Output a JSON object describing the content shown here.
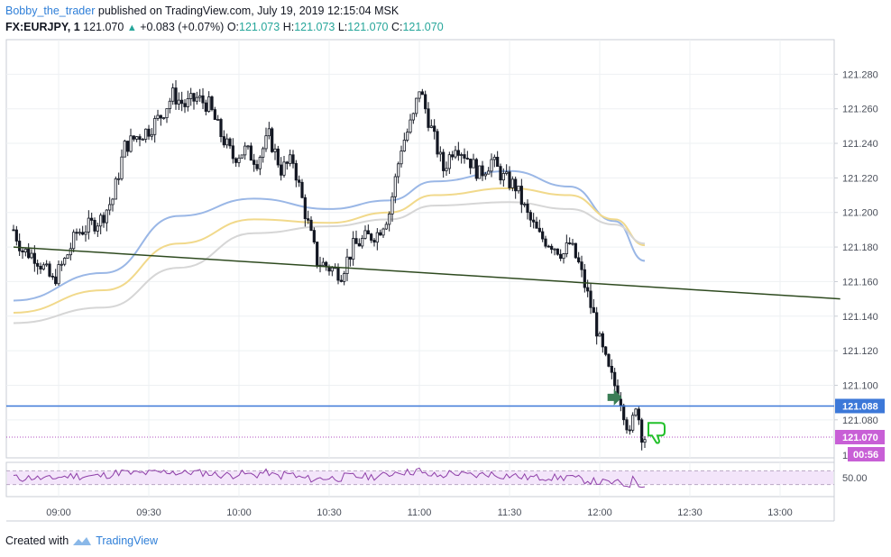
{
  "header": {
    "author": "Bobby_the_trader",
    "published_text": "published on TradingView.com, July 19, 2019 12:15:04 MSK",
    "symbol": "FX:EURJPY, 1",
    "last": "121.070",
    "change": "+0.083 (+0.07%)",
    "o_label": "O:",
    "o_val": "121.073",
    "h_label": "H:",
    "h_val": "121.073",
    "l_label": "L:",
    "l_val": "121.070",
    "c_label": "C:",
    "c_val": "121.070"
  },
  "footer": {
    "created_with": "Created with",
    "brand": "TradingView"
  },
  "colors": {
    "candle": "#131722",
    "ma_blue": "#9ab7e6",
    "ma_yellow": "#f1d98b",
    "ma_grey": "#d6d6d6",
    "trendline": "#2e4a1f",
    "hline": "#3c78d8",
    "last_line": "#b04fc0",
    "rsi_line": "#8e3ea8",
    "rsi_band": "#f3e5fa",
    "arrow": "#3a7d55",
    "thumb": "#22c02a"
  },
  "chart_data": {
    "type": "candlestick",
    "y_ticks": [
      "121.280",
      "121.260",
      "121.240",
      "121.220",
      "121.200",
      "121.180",
      "121.160",
      "121.140",
      "121.120",
      "121.100",
      "121.080"
    ],
    "y_range": [
      121.058,
      121.3
    ],
    "x_ticks": [
      "09:00",
      "09:30",
      "10:00",
      "10:30",
      "11:00",
      "11:30",
      "12:00",
      "12:30",
      "13:00"
    ],
    "levels": {
      "horizontal_line": {
        "value": 121.088,
        "label": "121.088"
      },
      "last_price": {
        "value": 121.07,
        "label": "121.070"
      },
      "countdown": "00:56",
      "partial_tick": "1"
    },
    "trendline": {
      "from": [
        "08:45",
        121.18
      ],
      "to": [
        "13:20",
        121.15
      ]
    },
    "close_path": [
      [
        "08:45",
        121.19
      ],
      [
        "08:48",
        121.178
      ],
      [
        "08:52",
        121.175
      ],
      [
        "08:55",
        121.168
      ],
      [
        "08:58",
        121.16
      ],
      [
        "09:02",
        121.172
      ],
      [
        "09:06",
        121.188
      ],
      [
        "09:10",
        121.192
      ],
      [
        "09:14",
        121.196
      ],
      [
        "09:18",
        121.208
      ],
      [
        "09:22",
        121.238
      ],
      [
        "09:26",
        121.244
      ],
      [
        "09:30",
        121.248
      ],
      [
        "09:34",
        121.256
      ],
      [
        "09:38",
        121.268
      ],
      [
        "09:42",
        121.262
      ],
      [
        "09:46",
        121.266
      ],
      [
        "09:50",
        121.262
      ],
      [
        "09:54",
        121.245
      ],
      [
        "09:58",
        121.232
      ],
      [
        "10:02",
        121.236
      ],
      [
        "10:06",
        121.23
      ],
      [
        "10:10",
        121.244
      ],
      [
        "10:14",
        121.225
      ],
      [
        "10:18",
        121.23
      ],
      [
        "10:22",
        121.2
      ],
      [
        "10:26",
        121.172
      ],
      [
        "10:30",
        121.168
      ],
      [
        "10:34",
        121.165
      ],
      [
        "10:38",
        121.18
      ],
      [
        "10:42",
        121.185
      ],
      [
        "10:46",
        121.188
      ],
      [
        "10:50",
        121.2
      ],
      [
        "10:54",
        121.238
      ],
      [
        "10:58",
        121.255
      ],
      [
        "11:00",
        121.272
      ],
      [
        "11:04",
        121.248
      ],
      [
        "11:08",
        121.225
      ],
      [
        "11:12",
        121.24
      ],
      [
        "11:16",
        121.232
      ],
      [
        "11:20",
        121.222
      ],
      [
        "11:24",
        121.23
      ],
      [
        "11:28",
        121.22
      ],
      [
        "11:32",
        121.215
      ],
      [
        "11:36",
        121.198
      ],
      [
        "11:40",
        121.186
      ],
      [
        "11:44",
        121.182
      ],
      [
        "11:48",
        121.176
      ],
      [
        "11:50",
        121.182
      ],
      [
        "11:53",
        121.17
      ],
      [
        "11:55",
        121.158
      ],
      [
        "11:58",
        121.14
      ],
      [
        "12:00",
        121.125
      ],
      [
        "12:03",
        121.108
      ],
      [
        "12:05",
        121.1
      ],
      [
        "12:07",
        121.092
      ],
      [
        "12:09",
        121.078
      ],
      [
        "12:10",
        121.07
      ],
      [
        "12:12",
        121.09
      ],
      [
        "12:14",
        121.072
      ],
      [
        "12:15",
        121.07
      ]
    ],
    "moving_averages": [
      {
        "color": "blue",
        "points": [
          [
            "08:45",
            121.149
          ],
          [
            "09:15",
            121.165
          ],
          [
            "09:40",
            121.198
          ],
          [
            "10:05",
            121.208
          ],
          [
            "10:30",
            121.202
          ],
          [
            "10:50",
            121.207
          ],
          [
            "11:05",
            121.218
          ],
          [
            "11:30",
            121.224
          ],
          [
            "11:50",
            121.215
          ],
          [
            "12:05",
            121.195
          ],
          [
            "12:15",
            121.172
          ]
        ]
      },
      {
        "color": "yellow",
        "points": [
          [
            "08:45",
            121.142
          ],
          [
            "09:15",
            121.155
          ],
          [
            "09:40",
            121.182
          ],
          [
            "10:05",
            121.196
          ],
          [
            "10:30",
            121.194
          ],
          [
            "10:50",
            121.2
          ],
          [
            "11:05",
            121.21
          ],
          [
            "11:30",
            121.214
          ],
          [
            "11:50",
            121.21
          ],
          [
            "12:05",
            121.196
          ],
          [
            "12:15",
            121.181
          ]
        ]
      },
      {
        "color": "grey",
        "points": [
          [
            "08:45",
            121.136
          ],
          [
            "09:15",
            121.145
          ],
          [
            "09:40",
            121.168
          ],
          [
            "10:05",
            121.188
          ],
          [
            "10:30",
            121.192
          ],
          [
            "10:50",
            121.196
          ],
          [
            "11:05",
            121.204
          ],
          [
            "11:30",
            121.206
          ],
          [
            "11:50",
            121.202
          ],
          [
            "12:05",
            121.193
          ],
          [
            "12:15",
            121.182
          ]
        ]
      }
    ],
    "rsi": {
      "tick_label": "50.00",
      "upper": 70,
      "lower": 30
    }
  }
}
